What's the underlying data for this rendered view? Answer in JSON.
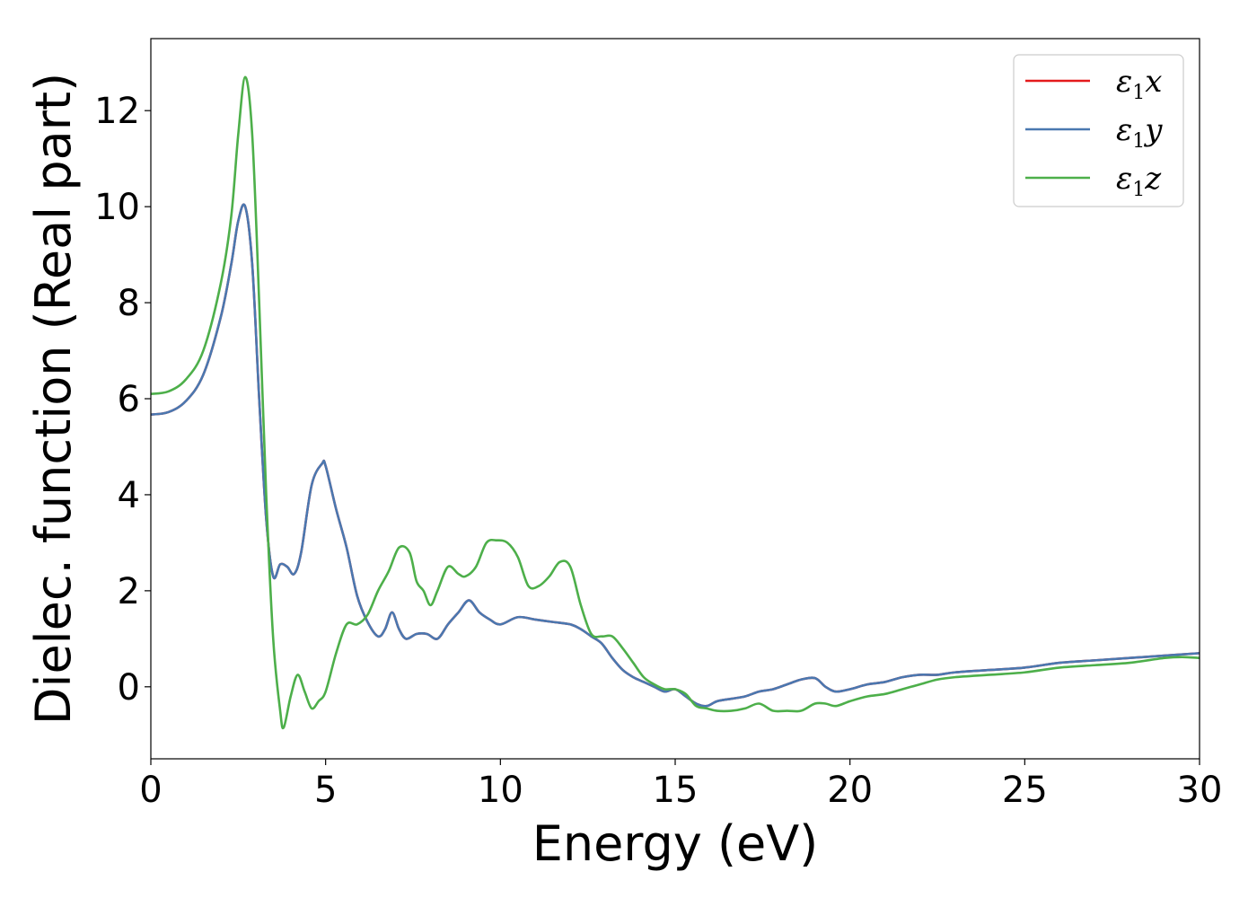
{
  "chart_data": {
    "type": "line",
    "xlabel": "Energy (eV)",
    "ylabel": "Dielec. function (Real part)",
    "xlim": [
      0,
      30
    ],
    "ylim": [
      -1.5,
      13.5
    ],
    "xticks": [
      0,
      5,
      10,
      15,
      20,
      25,
      30
    ],
    "yticks": [
      0,
      2,
      4,
      6,
      8,
      10,
      12
    ],
    "grid": false,
    "legend_position": "top-right",
    "series": [
      {
        "name": "ε1x",
        "legend_base": "ε",
        "legend_sub": "1",
        "legend_suffix": "x",
        "color": "#e41a1c",
        "x": [
          0,
          0.5,
          1.0,
          1.5,
          2.0,
          2.3,
          2.5,
          2.7,
          2.9,
          3.1,
          3.3,
          3.5,
          3.7,
          3.9,
          4.1,
          4.3,
          4.6,
          4.9,
          5.0,
          5.3,
          5.6,
          5.9,
          6.2,
          6.5,
          6.7,
          6.9,
          7.1,
          7.3,
          7.6,
          7.9,
          8.2,
          8.5,
          8.8,
          9.1,
          9.4,
          9.7,
          10.0,
          10.5,
          11.0,
          11.5,
          12.0,
          12.3,
          12.6,
          12.9,
          13.2,
          13.5,
          13.8,
          14.1,
          14.4,
          14.7,
          15.0,
          15.3,
          15.6,
          15.9,
          16.2,
          16.6,
          17.0,
          17.4,
          17.8,
          18.2,
          18.6,
          19.0,
          19.3,
          19.6,
          20.0,
          20.5,
          21.0,
          21.5,
          22.0,
          22.5,
          23.0,
          24.0,
          25.0,
          26.0,
          27.0,
          28.0,
          29.0,
          30.0
        ],
        "y": [
          5.67,
          5.72,
          5.95,
          6.5,
          7.7,
          8.8,
          9.7,
          10.0,
          8.8,
          6.0,
          3.5,
          2.3,
          2.55,
          2.5,
          2.35,
          2.8,
          4.2,
          4.65,
          4.6,
          3.7,
          2.9,
          1.9,
          1.35,
          1.05,
          1.2,
          1.55,
          1.2,
          1.0,
          1.1,
          1.1,
          1.0,
          1.3,
          1.55,
          1.8,
          1.55,
          1.4,
          1.3,
          1.45,
          1.4,
          1.35,
          1.3,
          1.2,
          1.05,
          0.9,
          0.6,
          0.35,
          0.2,
          0.1,
          0.0,
          -0.1,
          -0.05,
          -0.2,
          -0.35,
          -0.4,
          -0.3,
          -0.25,
          -0.2,
          -0.1,
          -0.05,
          0.05,
          0.15,
          0.18,
          0.0,
          -0.1,
          -0.05,
          0.05,
          0.1,
          0.2,
          0.25,
          0.25,
          0.3,
          0.35,
          0.4,
          0.5,
          0.55,
          0.6,
          0.65,
          0.7
        ]
      },
      {
        "name": "ε1y",
        "legend_base": "ε",
        "legend_sub": "1",
        "legend_suffix": "y",
        "color": "#4a78b0",
        "x": [
          0,
          0.5,
          1.0,
          1.5,
          2.0,
          2.3,
          2.5,
          2.7,
          2.9,
          3.1,
          3.3,
          3.5,
          3.7,
          3.9,
          4.1,
          4.3,
          4.6,
          4.9,
          5.0,
          5.3,
          5.6,
          5.9,
          6.2,
          6.5,
          6.7,
          6.9,
          7.1,
          7.3,
          7.6,
          7.9,
          8.2,
          8.5,
          8.8,
          9.1,
          9.4,
          9.7,
          10.0,
          10.5,
          11.0,
          11.5,
          12.0,
          12.3,
          12.6,
          12.9,
          13.2,
          13.5,
          13.8,
          14.1,
          14.4,
          14.7,
          15.0,
          15.3,
          15.6,
          15.9,
          16.2,
          16.6,
          17.0,
          17.4,
          17.8,
          18.2,
          18.6,
          19.0,
          19.3,
          19.6,
          20.0,
          20.5,
          21.0,
          21.5,
          22.0,
          22.5,
          23.0,
          24.0,
          25.0,
          26.0,
          27.0,
          28.0,
          29.0,
          30.0
        ],
        "y": [
          5.67,
          5.72,
          5.95,
          6.5,
          7.7,
          8.8,
          9.7,
          10.0,
          8.8,
          6.0,
          3.5,
          2.3,
          2.55,
          2.5,
          2.35,
          2.8,
          4.2,
          4.65,
          4.6,
          3.7,
          2.9,
          1.9,
          1.35,
          1.05,
          1.2,
          1.55,
          1.2,
          1.0,
          1.1,
          1.1,
          1.0,
          1.3,
          1.55,
          1.8,
          1.55,
          1.4,
          1.3,
          1.45,
          1.4,
          1.35,
          1.3,
          1.2,
          1.05,
          0.9,
          0.6,
          0.35,
          0.2,
          0.1,
          0.0,
          -0.1,
          -0.05,
          -0.2,
          -0.35,
          -0.4,
          -0.3,
          -0.25,
          -0.2,
          -0.1,
          -0.05,
          0.05,
          0.15,
          0.18,
          0.0,
          -0.1,
          -0.05,
          0.05,
          0.1,
          0.2,
          0.25,
          0.25,
          0.3,
          0.35,
          0.4,
          0.5,
          0.55,
          0.6,
          0.65,
          0.7
        ]
      },
      {
        "name": "ε1z",
        "legend_base": "ε",
        "legend_sub": "1",
        "legend_suffix": "z",
        "color": "#4daf4a",
        "x": [
          0,
          0.5,
          1.0,
          1.5,
          2.0,
          2.3,
          2.5,
          2.7,
          2.9,
          3.1,
          3.3,
          3.5,
          3.7,
          3.8,
          4.0,
          4.2,
          4.4,
          4.6,
          4.8,
          5.0,
          5.3,
          5.6,
          5.9,
          6.2,
          6.5,
          6.8,
          7.1,
          7.4,
          7.6,
          7.8,
          8.0,
          8.2,
          8.5,
          8.8,
          9.0,
          9.3,
          9.6,
          9.9,
          10.2,
          10.5,
          10.8,
          11.1,
          11.4,
          11.7,
          12.0,
          12.3,
          12.6,
          12.9,
          13.2,
          13.5,
          13.8,
          14.1,
          14.4,
          14.7,
          15.0,
          15.3,
          15.6,
          15.9,
          16.2,
          16.6,
          17.0,
          17.4,
          17.8,
          18.2,
          18.6,
          19.0,
          19.3,
          19.6,
          20.0,
          20.5,
          21.0,
          21.5,
          22.0,
          22.5,
          23.0,
          24.0,
          25.0,
          26.0,
          27.0,
          28.0,
          29.0,
          29.5,
          30.0
        ],
        "y": [
          6.1,
          6.15,
          6.4,
          7.0,
          8.4,
          9.8,
          11.5,
          12.7,
          11.5,
          8.0,
          4.0,
          1.0,
          -0.5,
          -0.85,
          -0.2,
          0.25,
          -0.1,
          -0.45,
          -0.3,
          -0.1,
          0.7,
          1.3,
          1.3,
          1.5,
          2.0,
          2.4,
          2.9,
          2.8,
          2.2,
          2.0,
          1.7,
          2.0,
          2.5,
          2.35,
          2.3,
          2.5,
          3.0,
          3.05,
          3.0,
          2.7,
          2.1,
          2.1,
          2.3,
          2.6,
          2.5,
          1.7,
          1.1,
          1.05,
          1.05,
          0.8,
          0.5,
          0.2,
          0.05,
          -0.05,
          -0.05,
          -0.15,
          -0.4,
          -0.45,
          -0.5,
          -0.5,
          -0.45,
          -0.35,
          -0.5,
          -0.5,
          -0.5,
          -0.35,
          -0.35,
          -0.4,
          -0.3,
          -0.2,
          -0.15,
          -0.05,
          0.05,
          0.15,
          0.2,
          0.25,
          0.3,
          0.4,
          0.45,
          0.5,
          0.6,
          0.62,
          0.6
        ]
      }
    ]
  }
}
